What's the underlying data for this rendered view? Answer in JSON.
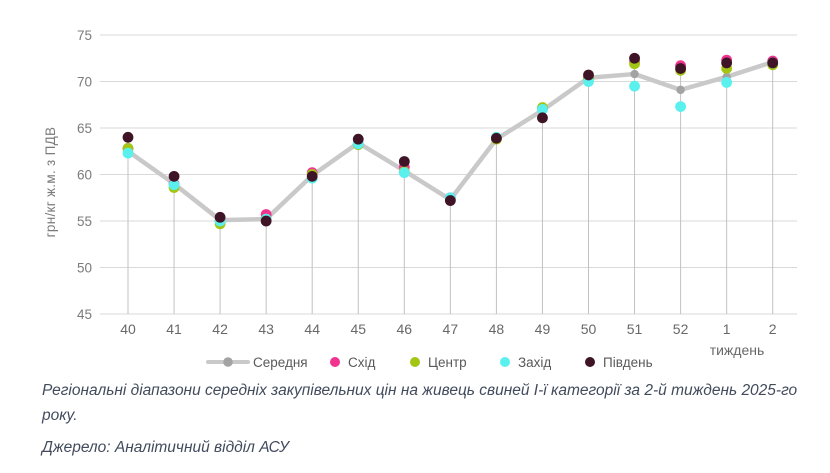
{
  "chart_data": {
    "type": "line",
    "title": "",
    "ylabel": "грн/кг ж.м. з ПДВ",
    "xlabel": "тиждень",
    "ylim": [
      45,
      75
    ],
    "ytick_step": 5,
    "grid": true,
    "grid_color": "#d9d9d9",
    "dropline_color": "#c2c2c2",
    "legend_position": "bottom",
    "categories": [
      "40",
      "41",
      "42",
      "43",
      "44",
      "45",
      "46",
      "47",
      "48",
      "49",
      "50",
      "51",
      "52",
      "1",
      "2"
    ],
    "average_series": {
      "name": "Середня",
      "slug": "average",
      "color": "#c9c9c9",
      "marker_color": "#a3a3a3",
      "values": [
        62.5,
        59.0,
        55.1,
        55.2,
        59.9,
        63.4,
        60.4,
        57.3,
        63.8,
        66.9,
        70.4,
        70.8,
        69.1,
        70.5,
        72.1
      ]
    },
    "series": [
      {
        "name": "Схід",
        "slug": "east",
        "color": "#f0348f",
        "values": [
          62.8,
          59.0,
          55.0,
          55.7,
          60.2,
          63.3,
          60.8,
          57.5,
          63.9,
          67.1,
          70.4,
          72.1,
          71.7,
          72.3,
          72.2
        ]
      },
      {
        "name": "Центр",
        "slug": "center",
        "color": "#a3c614",
        "values": [
          62.8,
          58.6,
          54.7,
          55.2,
          60.0,
          63.2,
          60.3,
          57.3,
          63.8,
          67.2,
          70.3,
          71.9,
          71.2,
          71.4,
          71.8
        ]
      },
      {
        "name": "Захід",
        "slug": "west",
        "color": "#5af0ee",
        "values": [
          62.3,
          58.9,
          55.0,
          55.2,
          59.6,
          63.3,
          60.2,
          57.5,
          64.0,
          67.0,
          70.0,
          69.5,
          67.3,
          69.9,
          72.0
        ]
      },
      {
        "name": "Південь",
        "slug": "south",
        "color": "#3f1426",
        "values": [
          64.0,
          59.8,
          55.4,
          55.0,
          59.8,
          63.8,
          61.4,
          57.2,
          63.9,
          66.1,
          70.7,
          72.5,
          71.4,
          72.0,
          72.0
        ]
      }
    ]
  },
  "caption": "Регіональні діапазони середніх закупівельних цін на живець свиней І-ї категорії за 2-й тиждень 2025-го року.",
  "source": "Джерело: Аналітичний відділ АСУ"
}
